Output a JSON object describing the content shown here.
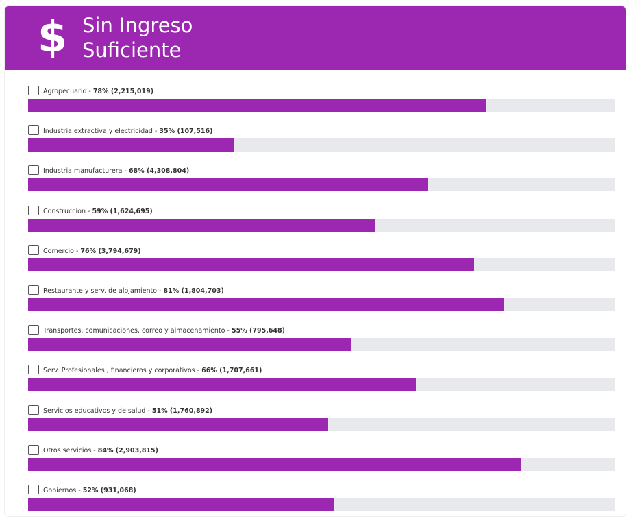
{
  "chart_data": {
    "type": "bar",
    "orientation": "horizontal",
    "title": "Sin Ingreso Suficiente",
    "categories": [
      "Agropecuario",
      "Industria extractiva y electricidad",
      "Industria manufacturera",
      "Construccion",
      "Comercio",
      "Restaurante y serv. de alojamiento",
      "Transportes, comunicaciones, correo y almacenamiento",
      "Serv. Profesionales , financieros y corporativos",
      "Servicios educativos y de salud",
      "Otros servicios",
      "Gobiernos"
    ],
    "values": [
      78,
      35,
      68,
      59,
      76,
      81,
      55,
      66,
      51,
      84,
      52
    ],
    "value_labels": [
      "78%",
      "35%",
      "68%",
      "59%",
      "76%",
      "81%",
      "55%",
      "66%",
      "51%",
      "84%",
      "52%"
    ],
    "counts": [
      2215019,
      107516,
      4308804,
      1624695,
      3794679,
      1804703,
      795648,
      1707661,
      1760892,
      2903815,
      931068
    ],
    "count_labels": [
      "2,215,019",
      "107,516",
      "4,308,804",
      "1,624,695",
      "3,794,679",
      "1,804,703",
      "795,648",
      "1,707,661",
      "1,760,892",
      "2,903,815",
      "931,068"
    ],
    "xlim": [
      0,
      100
    ],
    "color": "#9c27b0",
    "track_color": "#e8e9ec"
  }
}
